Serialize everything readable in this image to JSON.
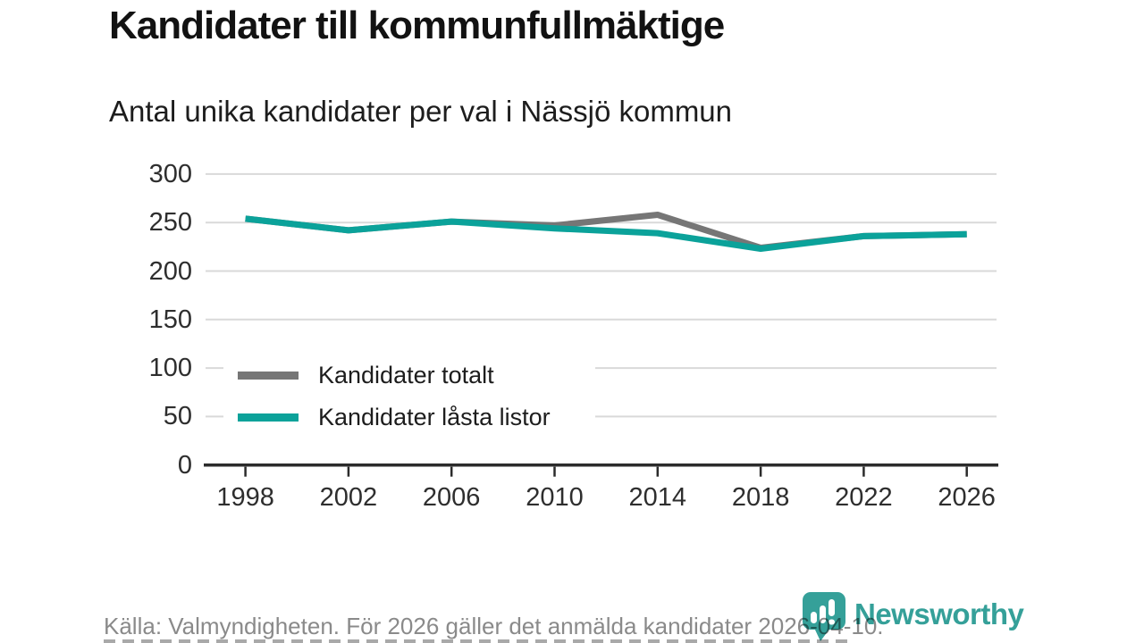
{
  "header": {
    "title": "Kandidater till kommunfullmäktige",
    "subtitle": "Antal unika kandidater per val i Nässjö kommun"
  },
  "chart_data": {
    "type": "line",
    "x": [
      1998,
      2002,
      2006,
      2010,
      2014,
      2018,
      2022,
      2026
    ],
    "series": [
      {
        "name": "Kandidater totalt",
        "color": "#767676",
        "values": [
          254,
          242,
          251,
          247,
          258,
          224,
          236,
          238
        ]
      },
      {
        "name": "Kandidater låsta listor",
        "color": "#0ba29a",
        "values": [
          254,
          242,
          251,
          244,
          239,
          223,
          236,
          238
        ]
      }
    ],
    "ylim": [
      0,
      300
    ],
    "yticks": [
      0,
      50,
      100,
      150,
      200,
      250,
      300
    ],
    "grid": true,
    "grid_color": "#d9d9d9",
    "axis_color": "#2b2b2b",
    "legend_position": "inside-bottom-left",
    "title": "Kandidater till kommunfullmäktige",
    "xlabel": "",
    "ylabel": ""
  },
  "footer": {
    "source": "Källa: Valmyndigheten. För 2026 gäller det anmälda kandidater 2026-04-10."
  },
  "logo": {
    "text": "Newsworthy",
    "color": "#35a099",
    "icon": "newsworthy-bar-chart-pin-icon"
  }
}
